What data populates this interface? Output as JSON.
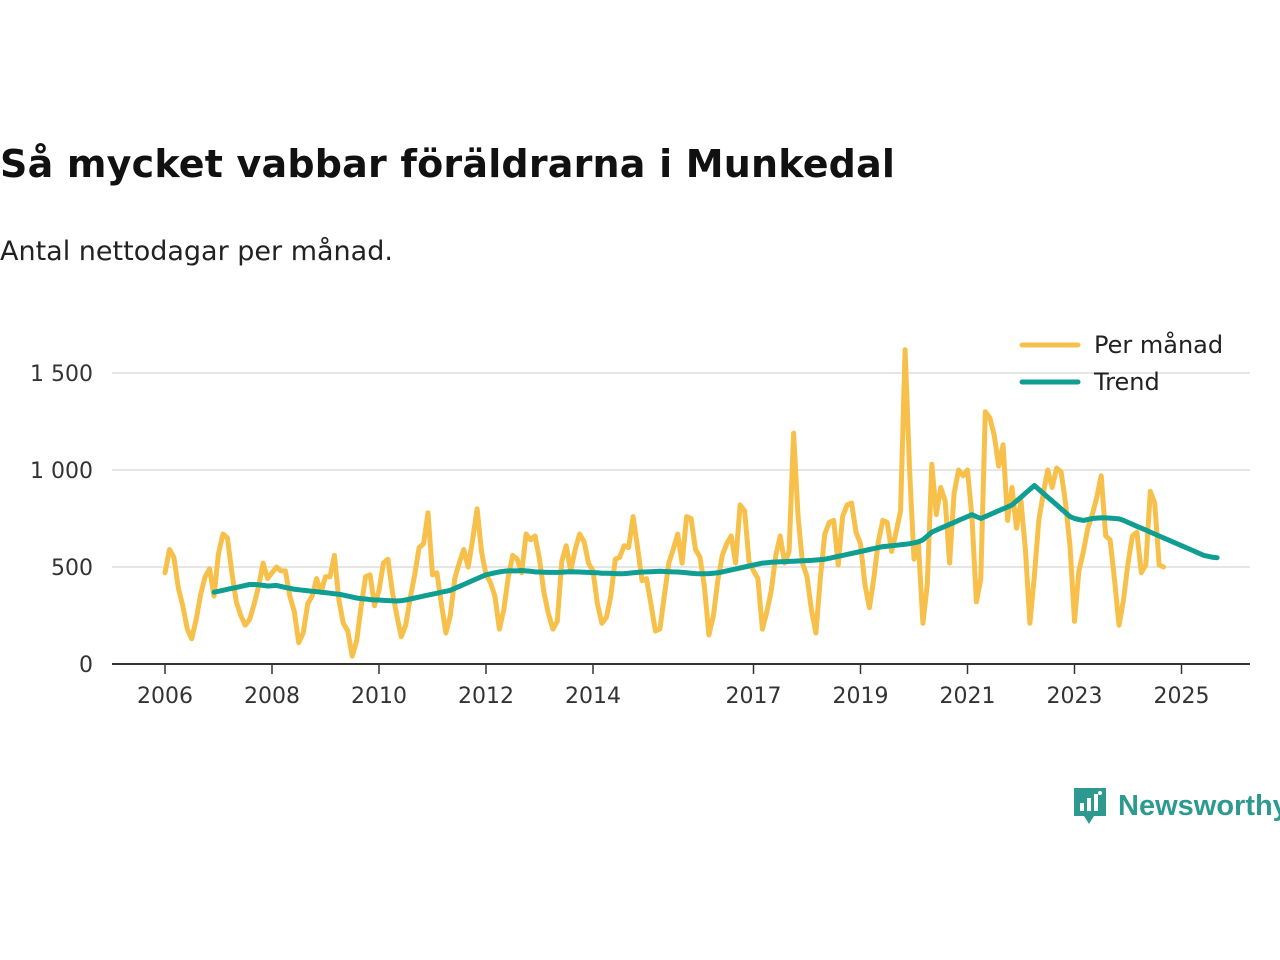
{
  "colors": {
    "per_month": "#f7c04a",
    "trend": "#0f9e91",
    "grid": "#dddddd",
    "axis": "#333333",
    "brand": "#2e9a8f"
  },
  "brand": {
    "name": "Newsworthy",
    "icon": "bar-chart-speech-bubble-icon"
  },
  "chart_data": {
    "type": "line",
    "title": "Så mycket vabbar föräldrarna i Munkedal",
    "subtitle": "Antal nettodagar per månad.",
    "xlabel": "",
    "ylabel": "",
    "xlim": [
      2006,
      2027.3
    ],
    "ylim": [
      0,
      1700
    ],
    "x_ticks": [
      2006,
      2008,
      2010,
      2012,
      2014,
      2017,
      2019,
      2021,
      2023,
      2025
    ],
    "y_ticks": [
      0,
      500,
      1000,
      1500
    ],
    "y_tick_labels": [
      "0",
      "500",
      "1 000",
      "1 500"
    ],
    "legend_position": "top-right",
    "series": [
      {
        "name": "Per månad",
        "x_start": 2006.0,
        "x_step": 0.08333,
        "values": [
          470,
          590,
          550,
          390,
          300,
          180,
          130,
          230,
          360,
          450,
          490,
          350,
          570,
          670,
          650,
          470,
          320,
          250,
          200,
          230,
          310,
          400,
          520,
          440,
          470,
          500,
          480,
          480,
          350,
          270,
          110,
          160,
          310,
          350,
          440,
          370,
          450,
          450,
          560,
          330,
          210,
          170,
          40,
          120,
          300,
          450,
          460,
          300,
          380,
          520,
          540,
          370,
          250,
          140,
          200,
          340,
          460,
          600,
          620,
          780,
          460,
          470,
          310,
          160,
          250,
          440,
          520,
          590,
          500,
          640,
          800,
          580,
          460,
          420,
          350,
          180,
          280,
          450,
          560,
          540,
          470,
          670,
          640,
          660,
          540,
          370,
          260,
          180,
          220,
          530,
          610,
          480,
          590,
          670,
          630,
          520,
          480,
          310,
          210,
          240,
          350,
          540,
          550,
          610,
          600,
          760,
          600,
          430,
          440,
          310,
          170,
          180,
          350,
          520,
          590,
          670,
          520,
          760,
          750,
          590,
          550,
          400,
          150,
          250,
          430,
          560,
          620,
          660,
          520,
          820,
          790,
          530,
          480,
          440,
          180,
          270,
          380,
          560,
          660,
          520,
          580,
          1190,
          760,
          520,
          450,
          280,
          160,
          440,
          670,
          730,
          740,
          510,
          760,
          820,
          830,
          680,
          620,
          410,
          290,
          440,
          630,
          740,
          730,
          580,
          680,
          790,
          1620,
          1010,
          540,
          620,
          210,
          410,
          1030,
          770,
          910,
          840,
          520,
          880,
          1000,
          970,
          1000,
          760,
          320,
          440,
          1300,
          1270,
          1180,
          1020,
          1130,
          740,
          910,
          700,
          840,
          590,
          210,
          450,
          740,
          880,
          1000,
          910,
          1010,
          990,
          830,
          610,
          220,
          480,
          580,
          700,
          770,
          860,
          970,
          660,
          640,
          430,
          200,
          330,
          520,
          660,
          680,
          470,
          510,
          890,
          830,
          510,
          500
        ]
      },
      {
        "name": "Trend",
        "x_start": 2006.917,
        "x_step": 0.08333,
        "values": [
          370,
          375,
          380,
          385,
          390,
          395,
          400,
          405,
          410,
          410,
          408,
          405,
          402,
          403,
          405,
          400,
          395,
          390,
          385,
          383,
          380,
          378,
          375,
          373,
          370,
          368,
          365,
          362,
          360,
          355,
          350,
          345,
          340,
          337,
          335,
          332,
          330,
          330,
          328,
          327,
          326,
          325,
          327,
          330,
          335,
          340,
          345,
          350,
          355,
          360,
          365,
          370,
          375,
          380,
          390,
          400,
          410,
          420,
          430,
          440,
          450,
          460,
          465,
          470,
          475,
          478,
          480,
          480,
          480,
          482,
          480,
          478,
          475,
          474,
          473,
          472,
          472,
          472,
          473,
          475,
          476,
          475,
          474,
          473,
          472,
          471,
          470,
          468,
          468,
          467,
          466,
          465,
          466,
          468,
          470,
          472,
          474,
          475,
          476,
          477,
          478,
          477,
          476,
          475,
          474,
          472,
          470,
          468,
          466,
          465,
          465,
          466,
          468,
          470,
          475,
          480,
          485,
          490,
          495,
          500,
          505,
          510,
          515,
          520,
          522,
          524,
          526,
          527,
          528,
          529,
          530,
          531,
          532,
          533,
          534,
          536,
          538,
          540,
          545,
          550,
          555,
          560,
          565,
          570,
          575,
          580,
          585,
          590,
          595,
          600,
          605,
          607,
          610,
          612,
          615,
          617,
          620,
          625,
          630,
          640,
          660,
          680,
          690,
          700,
          710,
          720,
          730,
          740,
          750,
          760,
          770,
          760,
          750,
          760,
          770,
          780,
          790,
          800,
          810,
          820,
          840,
          860,
          880,
          900,
          920,
          900,
          880,
          860,
          840,
          820,
          800,
          780,
          760,
          750,
          745,
          740,
          745,
          750,
          752,
          754,
          753,
          752,
          750,
          748,
          740,
          730,
          720,
          710,
          700,
          690,
          680,
          670,
          660,
          650,
          640,
          630,
          620,
          610,
          600,
          590,
          580,
          570,
          560,
          555,
          550,
          548
        ]
      }
    ]
  }
}
